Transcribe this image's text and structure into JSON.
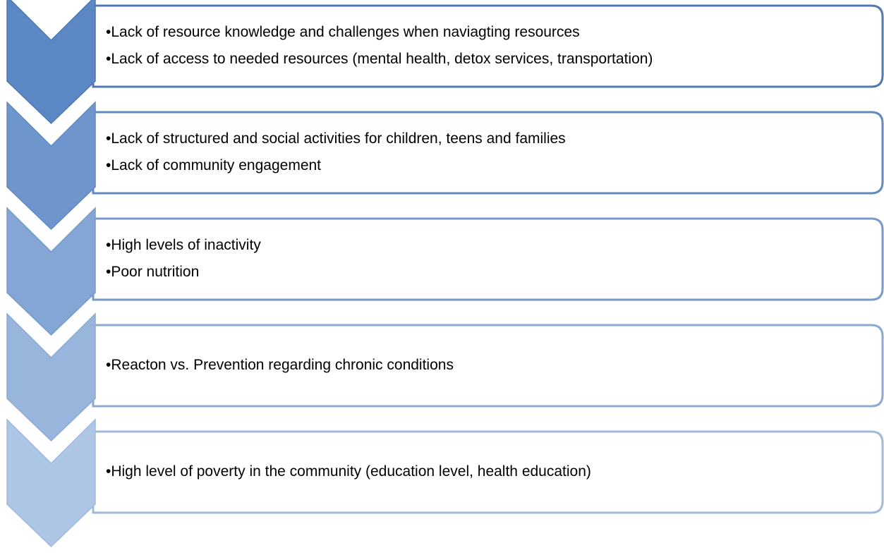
{
  "items": [
    {
      "bullets": [
        "•Lack of resource knowledge  and challenges when naviagting resources",
        "•Lack of access to needed resources (mental health, detox services, transportation)"
      ]
    },
    {
      "bullets": [
        "•Lack of structured and social activities for children, teens and families",
        "•Lack of community engagement"
      ]
    },
    {
      "bullets": [
        "•High levels of inactivity",
        "•Poor nutrition"
      ]
    },
    {
      "bullets": [
        "•Reacton vs. Prevention regarding chronic conditions"
      ]
    },
    {
      "bullets": [
        "•High level of poverty in the community (education level, health education)"
      ]
    }
  ]
}
